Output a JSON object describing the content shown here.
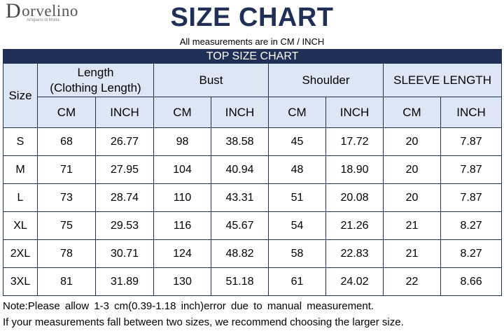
{
  "brand": {
    "initial": "D",
    "name_rest": "orvelino",
    "tagline": "Artigiano di Moda"
  },
  "title": "SIZE CHART",
  "subtitle": "All measurements are in CM / INCH",
  "table_title": "TOP SIZE CHART",
  "headers": {
    "size": "Size",
    "length_line1": "Length",
    "length_line2": "(Clothing Length)",
    "bust": "Bust",
    "shoulder": "Shoulder",
    "sleeve": "SLEEVE LENGTH",
    "cm": "CM",
    "inch": "INCH"
  },
  "rows": [
    {
      "size": "S",
      "len_cm": "68",
      "len_in": "26.77",
      "bust_cm": "98",
      "bust_in": "38.58",
      "sh_cm": "45",
      "sh_in": "17.72",
      "sl_cm": "20",
      "sl_in": "7.87"
    },
    {
      "size": "M",
      "len_cm": "71",
      "len_in": "27.95",
      "bust_cm": "104",
      "bust_in": "40.94",
      "sh_cm": "48",
      "sh_in": "18.90",
      "sl_cm": "20",
      "sl_in": "7.87"
    },
    {
      "size": "L",
      "len_cm": "73",
      "len_in": "28.74",
      "bust_cm": "110",
      "bust_in": "43.31",
      "sh_cm": "51",
      "sh_in": "20.08",
      "sl_cm": "20",
      "sl_in": "7.87"
    },
    {
      "size": "XL",
      "len_cm": "75",
      "len_in": "29.53",
      "bust_cm": "116",
      "bust_in": "45.67",
      "sh_cm": "54",
      "sh_in": "21.26",
      "sl_cm": "21",
      "sl_in": "8.27"
    },
    {
      "size": "2XL",
      "len_cm": "78",
      "len_in": "30.71",
      "bust_cm": "124",
      "bust_in": "48.82",
      "sh_cm": "58",
      "sh_in": "22.83",
      "sl_cm": "21",
      "sl_in": "8.27"
    },
    {
      "size": "3XL",
      "len_cm": "81",
      "len_in": "31.89",
      "bust_cm": "130",
      "bust_in": "51.18",
      "sh_cm": "61",
      "sh_in": "24.02",
      "sl_cm": "22",
      "sl_in": "8.66"
    }
  ],
  "notes": {
    "line1": "Note:Please allow 1-3 cm(0.39-1.18 inch)error due to manual measurement.",
    "line2": "If your measurements fall between two sizes, we recommend choosing the larger size."
  },
  "colors": {
    "navy": "#1f2f55",
    "header_fill": "#dde6f4"
  }
}
